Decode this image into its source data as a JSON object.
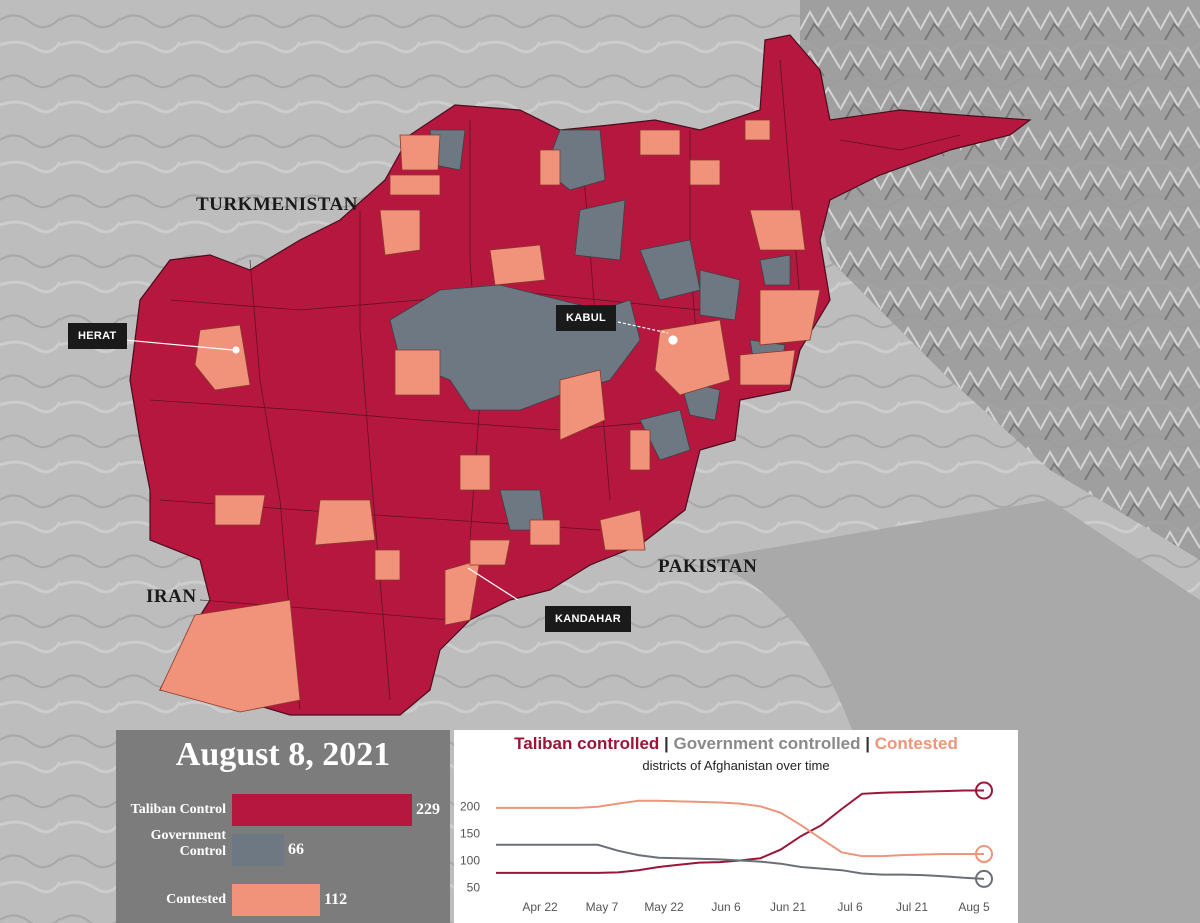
{
  "map": {
    "country_labels": [
      "TURKMENISTAN",
      "IRAN",
      "PAKISTAN"
    ],
    "city_labels": [
      "HERAT",
      "KABUL",
      "KANDAHAR"
    ],
    "colors": {
      "taliban": "#b5173f",
      "government": "#6e7882",
      "contested": "#f1927a",
      "background": "#bcbcbc"
    }
  },
  "bar_panel": {
    "date": "August 8, 2021",
    "max_value": 229,
    "rows": [
      {
        "label": "Taliban Control",
        "value": 229,
        "color": "#b5173f"
      },
      {
        "label": "Government Control",
        "value": 66,
        "color": "#6e7882"
      },
      {
        "label": "Contested",
        "value": 112,
        "color": "#f1927a"
      }
    ]
  },
  "chart_data": {
    "type": "line",
    "title_parts": [
      "Taliban controlled",
      "Government controlled",
      "Contested"
    ],
    "separator": " | ",
    "subtitle": "districts of Afghanistan over time",
    "y_ticks": [
      50,
      100,
      150,
      200
    ],
    "x_ticks": [
      "Apr 22",
      "May 7",
      "May 22",
      "Jun 6",
      "Jun 21",
      "Jul 6",
      "Jul 21",
      "Aug 5"
    ],
    "ylim": [
      40,
      230
    ],
    "series": [
      {
        "name": "Taliban controlled",
        "color": "#9c1437",
        "values": [
          77,
          77,
          77,
          77,
          77,
          77,
          78,
          82,
          88,
          92,
          96,
          97,
          100,
          104,
          120,
          145,
          165,
          195,
          223,
          225,
          226,
          227,
          228,
          229,
          229
        ]
      },
      {
        "name": "Government controlled",
        "color": "#6b6f78",
        "values": [
          129,
          129,
          129,
          129,
          129,
          129,
          118,
          110,
          105,
          104,
          103,
          102,
          100,
          98,
          94,
          88,
          85,
          82,
          76,
          74,
          74,
          73,
          71,
          68,
          66
        ]
      },
      {
        "name": "Contested",
        "color": "#ec967b",
        "values": [
          197,
          197,
          197,
          197,
          197,
          199,
          205,
          210,
          210,
          209,
          208,
          207,
          205,
          200,
          188,
          165,
          140,
          115,
          108,
          108,
          110,
          111,
          112,
          112,
          112
        ]
      }
    ]
  }
}
